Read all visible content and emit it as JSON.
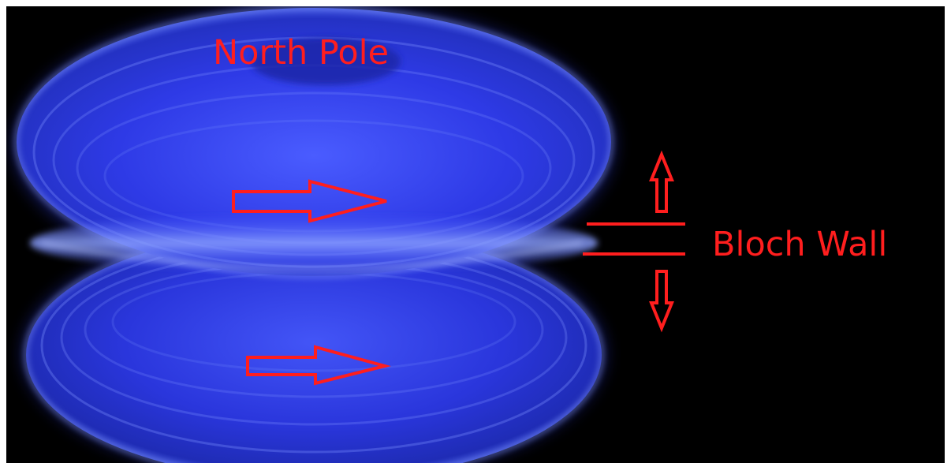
{
  "labels": {
    "north_pole": "North Pole",
    "bloch_wall": "Bloch Wall"
  },
  "colors": {
    "background": "#000000",
    "field_blue": "#2f3cff",
    "field_glow": "#6e88ff",
    "annotation_red": "#ff1e1e"
  },
  "icons": {
    "flux_arrow_top": "right-arrow-icon",
    "flux_arrow_bottom": "right-arrow-icon",
    "wall_arrow_up": "up-arrow-icon",
    "wall_arrow_down": "down-arrow-icon"
  }
}
